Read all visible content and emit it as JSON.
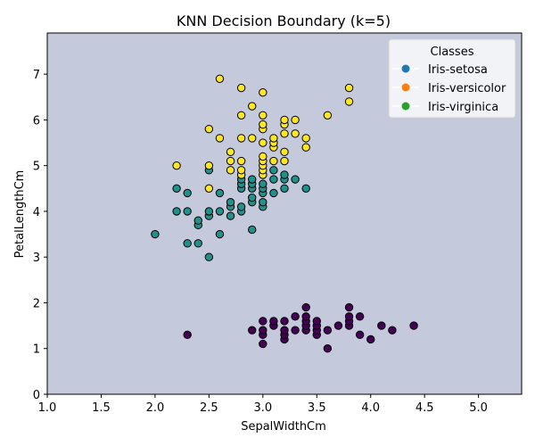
{
  "chart_data": {
    "type": "scatter",
    "title": "KNN Decision Boundary (k=5)",
    "xlabel": "SepalWidthCm",
    "ylabel": "PetalLengthCm",
    "xlim": [
      1.0,
      5.4
    ],
    "ylim": [
      0,
      7.9
    ],
    "xticks": [
      1.0,
      1.5,
      2.0,
      2.5,
      3.0,
      3.5,
      4.0,
      4.5,
      5.0
    ],
    "yticks": [
      0,
      1,
      2,
      3,
      4,
      5,
      6,
      7
    ],
    "grid": false,
    "background_region_color": "#c4c9dc",
    "legend": {
      "title": "Classes",
      "placement": "top-right",
      "entries": [
        {
          "label": "Iris-setosa",
          "color": "#1f77b4"
        },
        {
          "label": "Iris-versicolor",
          "color": "#ff7f0e"
        },
        {
          "label": "Iris-virginica",
          "color": "#2ca02c"
        }
      ]
    },
    "series": [
      {
        "color": "#440154",
        "points": [
          [
            2.3,
            1.3
          ],
          [
            2.9,
            1.4
          ],
          [
            3.0,
            1.1
          ],
          [
            3.0,
            1.3
          ],
          [
            3.0,
            1.4
          ],
          [
            3.0,
            1.6
          ],
          [
            3.1,
            1.5
          ],
          [
            3.1,
            1.6
          ],
          [
            3.2,
            1.2
          ],
          [
            3.2,
            1.3
          ],
          [
            3.2,
            1.4
          ],
          [
            3.2,
            1.6
          ],
          [
            3.3,
            1.4
          ],
          [
            3.3,
            1.7
          ],
          [
            3.4,
            1.4
          ],
          [
            3.4,
            1.5
          ],
          [
            3.4,
            1.6
          ],
          [
            3.4,
            1.7
          ],
          [
            3.4,
            1.9
          ],
          [
            3.5,
            1.3
          ],
          [
            3.5,
            1.4
          ],
          [
            3.5,
            1.5
          ],
          [
            3.5,
            1.6
          ],
          [
            3.6,
            1.0
          ],
          [
            3.6,
            1.4
          ],
          [
            3.7,
            1.5
          ],
          [
            3.8,
            1.5
          ],
          [
            3.8,
            1.6
          ],
          [
            3.8,
            1.7
          ],
          [
            3.8,
            1.9
          ],
          [
            3.9,
            1.3
          ],
          [
            3.9,
            1.7
          ],
          [
            4.0,
            1.2
          ],
          [
            4.1,
            1.5
          ],
          [
            4.2,
            1.4
          ],
          [
            4.4,
            1.5
          ]
        ]
      },
      {
        "color": "#21918c",
        "points": [
          [
            2.0,
            3.5
          ],
          [
            2.2,
            4.0
          ],
          [
            2.2,
            4.5
          ],
          [
            2.3,
            3.3
          ],
          [
            2.3,
            4.0
          ],
          [
            2.3,
            4.4
          ],
          [
            2.4,
            3.3
          ],
          [
            2.4,
            3.7
          ],
          [
            2.4,
            3.8
          ],
          [
            2.5,
            3.0
          ],
          [
            2.5,
            3.9
          ],
          [
            2.5,
            4.0
          ],
          [
            2.5,
            4.9
          ],
          [
            2.6,
            3.5
          ],
          [
            2.6,
            4.0
          ],
          [
            2.6,
            4.4
          ],
          [
            2.7,
            3.9
          ],
          [
            2.7,
            4.1
          ],
          [
            2.7,
            4.2
          ],
          [
            2.8,
            4.0
          ],
          [
            2.8,
            4.1
          ],
          [
            2.8,
            4.5
          ],
          [
            2.8,
            4.6
          ],
          [
            2.8,
            4.7
          ],
          [
            2.8,
            4.8
          ],
          [
            2.9,
            3.6
          ],
          [
            2.9,
            4.2
          ],
          [
            2.9,
            4.3
          ],
          [
            2.9,
            4.5
          ],
          [
            2.9,
            4.6
          ],
          [
            2.9,
            4.7
          ],
          [
            3.0,
            4.1
          ],
          [
            3.0,
            4.2
          ],
          [
            3.0,
            4.4
          ],
          [
            3.0,
            4.5
          ],
          [
            3.0,
            4.6
          ],
          [
            3.0,
            4.8
          ],
          [
            3.1,
            4.4
          ],
          [
            3.1,
            4.7
          ],
          [
            3.1,
            4.9
          ],
          [
            3.2,
            4.5
          ],
          [
            3.2,
            4.7
          ],
          [
            3.2,
            4.8
          ],
          [
            3.3,
            4.7
          ],
          [
            3.4,
            4.5
          ]
        ]
      },
      {
        "color": "#fde725",
        "points": [
          [
            2.2,
            5.0
          ],
          [
            2.5,
            4.5
          ],
          [
            2.5,
            5.0
          ],
          [
            2.5,
            5.8
          ],
          [
            2.6,
            5.6
          ],
          [
            2.6,
            6.9
          ],
          [
            2.7,
            4.9
          ],
          [
            2.7,
            5.1
          ],
          [
            2.7,
            5.3
          ],
          [
            2.8,
            4.8
          ],
          [
            2.8,
            4.9
          ],
          [
            2.8,
            5.1
          ],
          [
            2.8,
            5.6
          ],
          [
            2.8,
            6.1
          ],
          [
            2.8,
            6.7
          ],
          [
            2.9,
            5.6
          ],
          [
            2.9,
            6.3
          ],
          [
            3.0,
            4.8
          ],
          [
            3.0,
            4.9
          ],
          [
            3.0,
            5.0
          ],
          [
            3.0,
            5.1
          ],
          [
            3.0,
            5.2
          ],
          [
            3.0,
            5.5
          ],
          [
            3.0,
            5.8
          ],
          [
            3.0,
            5.9
          ],
          [
            3.0,
            6.1
          ],
          [
            3.0,
            6.6
          ],
          [
            3.1,
            5.1
          ],
          [
            3.1,
            5.4
          ],
          [
            3.1,
            5.5
          ],
          [
            3.1,
            5.6
          ],
          [
            3.2,
            5.1
          ],
          [
            3.2,
            5.3
          ],
          [
            3.2,
            5.7
          ],
          [
            3.2,
            5.9
          ],
          [
            3.2,
            6.0
          ],
          [
            3.3,
            5.7
          ],
          [
            3.3,
            6.0
          ],
          [
            3.4,
            5.4
          ],
          [
            3.4,
            5.6
          ],
          [
            3.6,
            6.1
          ],
          [
            3.8,
            6.4
          ],
          [
            3.8,
            6.7
          ]
        ]
      }
    ]
  }
}
